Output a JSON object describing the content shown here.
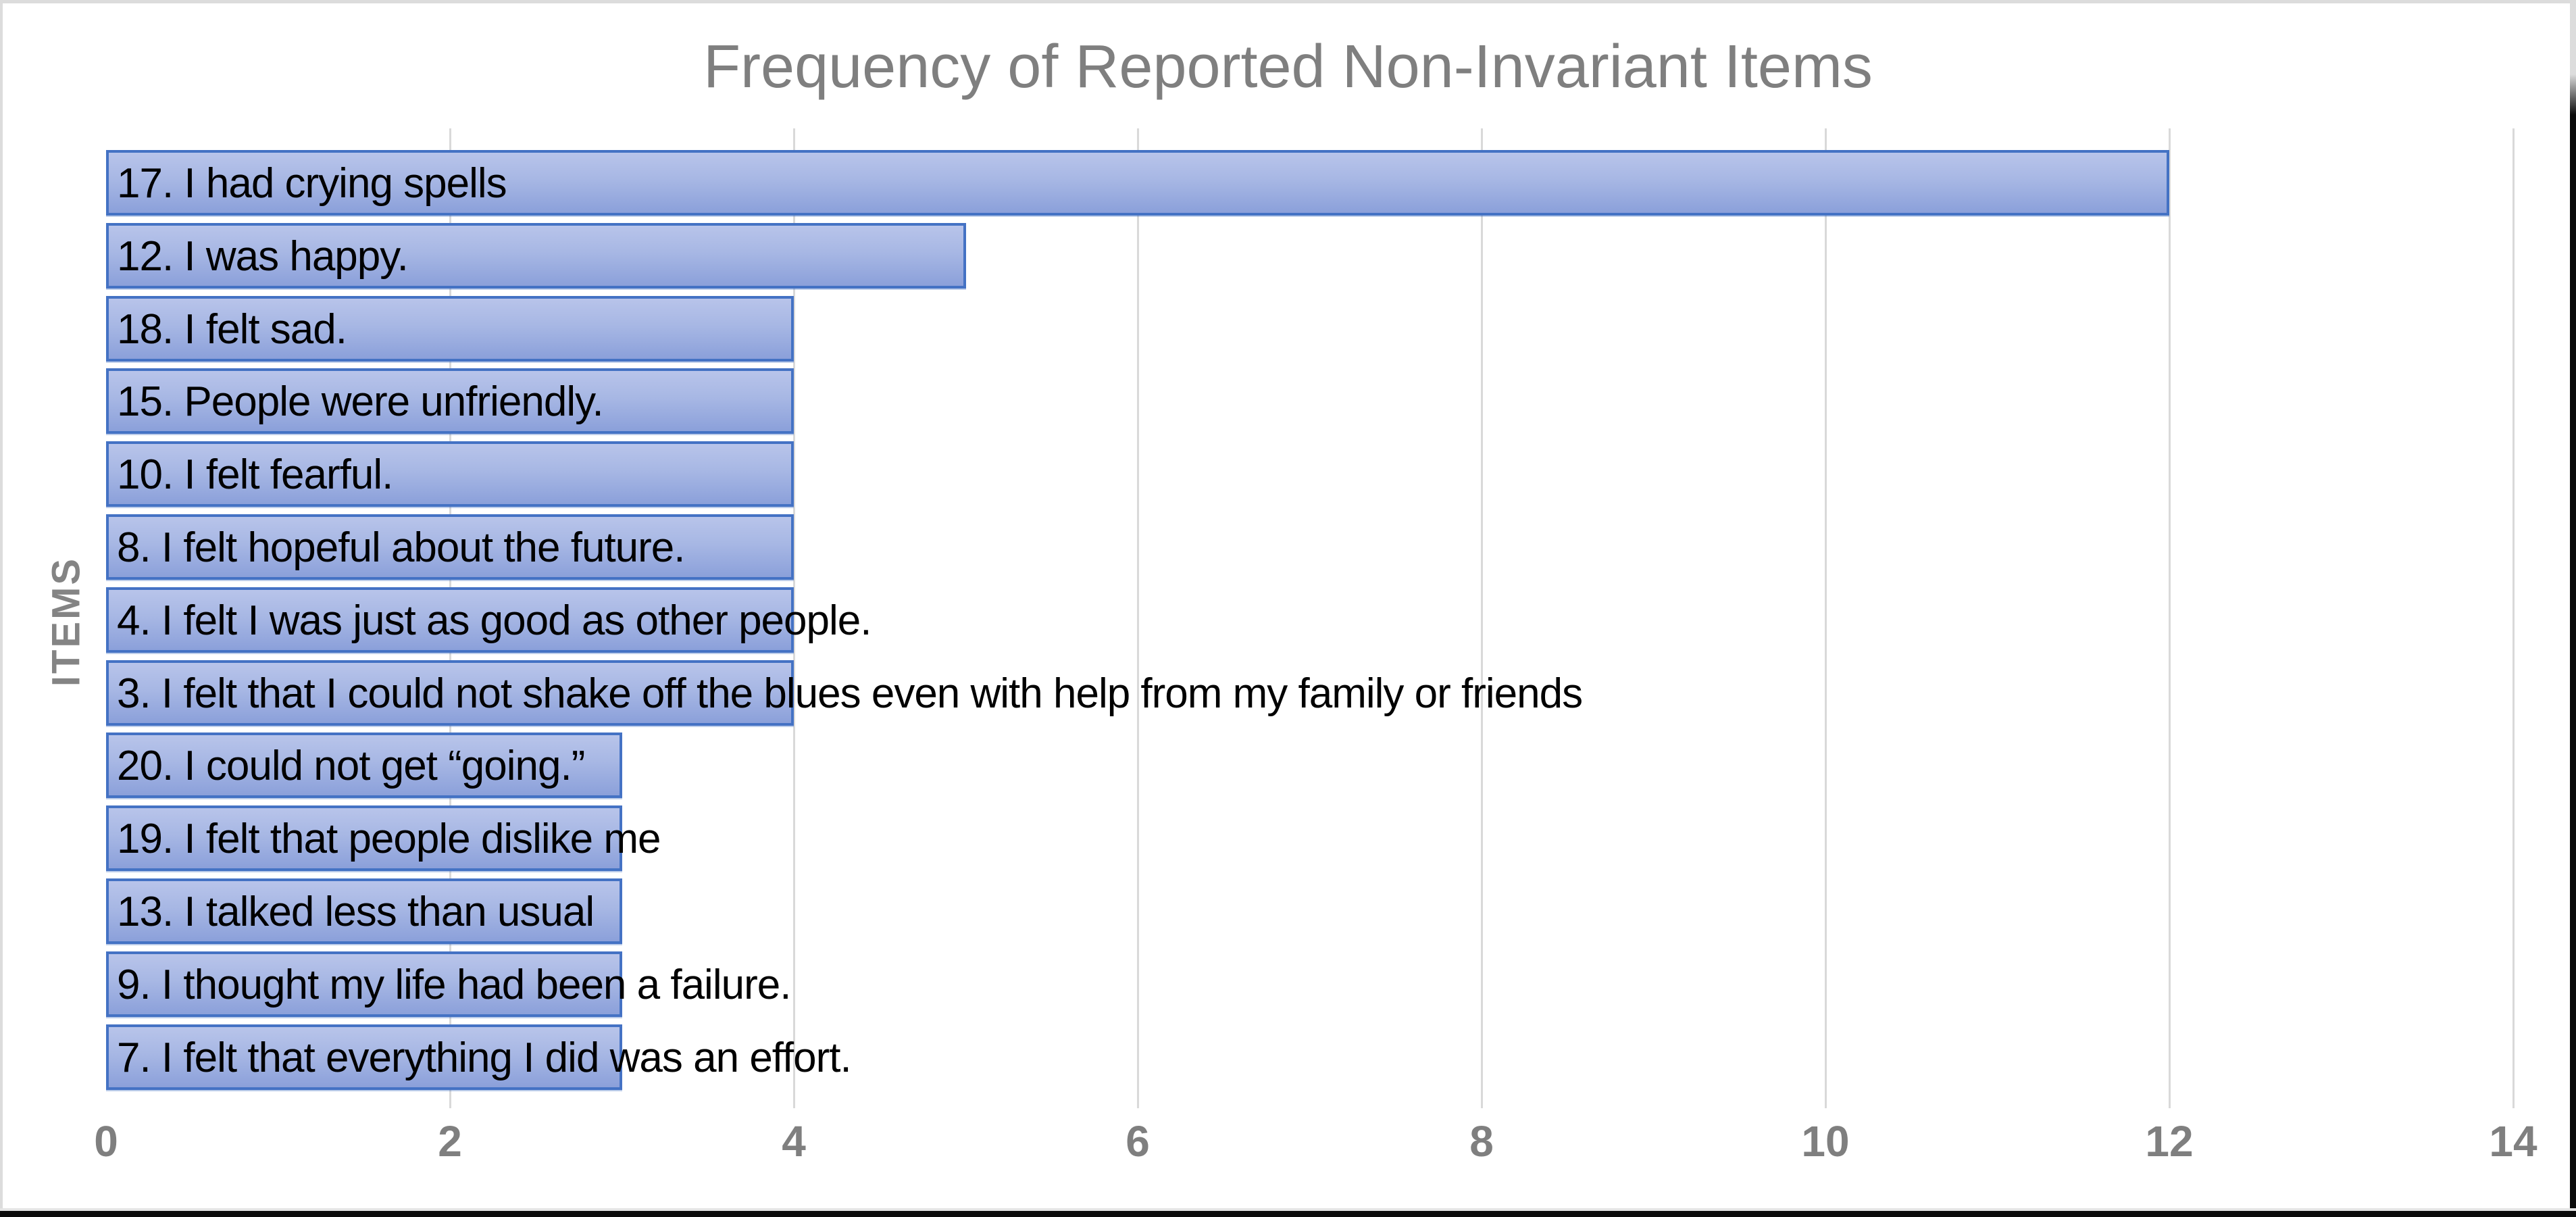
{
  "chart_data": {
    "type": "bar",
    "orientation": "horizontal",
    "title": "Frequency of Reported Non-Invariant Items",
    "xlabel": "",
    "ylabel": "ITEMS",
    "xlim": [
      0,
      14
    ],
    "xticks": [
      0,
      2,
      4,
      6,
      8,
      10,
      12,
      14
    ],
    "grid": "vertical gridlines at even values, light gray",
    "legend": "none",
    "categories": [
      "17. I had crying spells",
      "12. I was happy.",
      "18. I felt sad.",
      "15. People were unfriendly.",
      "10. I felt fearful.",
      "8. I felt hopeful about the future.",
      "4. I felt I was just as good as other people.",
      "3. I felt that I could not shake off the blues even with help from my family or friends",
      "20. I could not get “going.”",
      "19. I felt that people dislike me",
      "13. I talked less than usual",
      "9. I thought my life had been a failure.",
      "7. I felt that everything I did was an effort."
    ],
    "values": [
      12,
      5,
      4,
      4,
      4,
      4,
      4,
      4,
      3,
      3,
      3,
      3,
      3
    ],
    "colors": {
      "bar_fill_top": "#b8c4ea",
      "bar_fill_bottom": "#8ba0da",
      "bar_border": "#4472c4",
      "title_text": "#7f7f7f",
      "tick_text": "#7f7f7f",
      "axis_title_text": "#848484",
      "gridline": "#d9d9d9",
      "label_text": "#000000",
      "background": "#ffffff"
    }
  }
}
